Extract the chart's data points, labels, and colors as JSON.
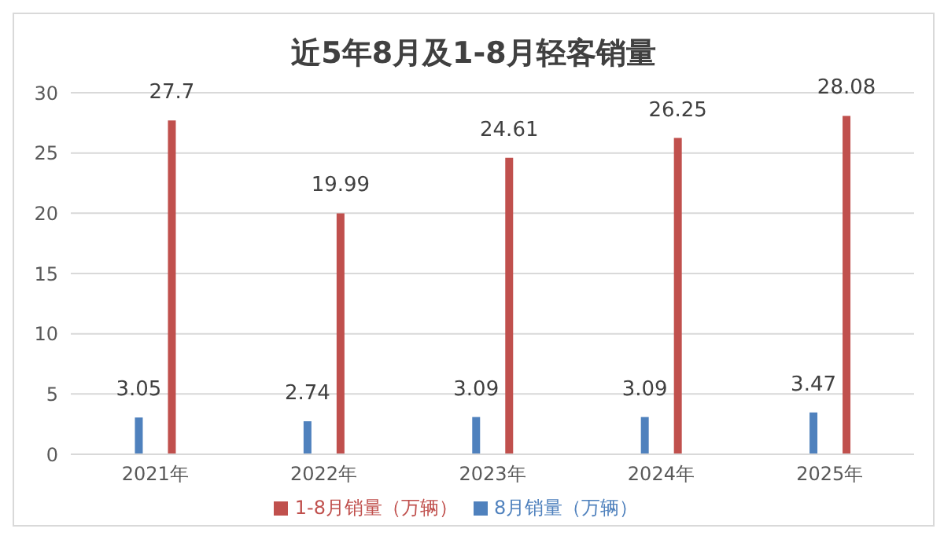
{
  "chart_data": {
    "type": "bar",
    "title": "近5年8月及1-8月轻客销量",
    "categories": [
      "2021年",
      "2022年",
      "2023年",
      "2024年",
      "2025年"
    ],
    "series": [
      {
        "name": "8月销量（万辆）",
        "color": "#4f81bd",
        "values": [
          3.05,
          2.74,
          3.09,
          3.09,
          3.47
        ]
      },
      {
        "name": "1-8月销量（万辆）",
        "color": "#c0504d",
        "values": [
          27.7,
          19.99,
          24.61,
          26.25,
          28.08
        ]
      }
    ],
    "ylim": [
      0,
      30
    ],
    "yticks": [
      0,
      5,
      10,
      15,
      20,
      25,
      30
    ],
    "grid": "y",
    "legend": "bottom",
    "data_labels": true
  }
}
